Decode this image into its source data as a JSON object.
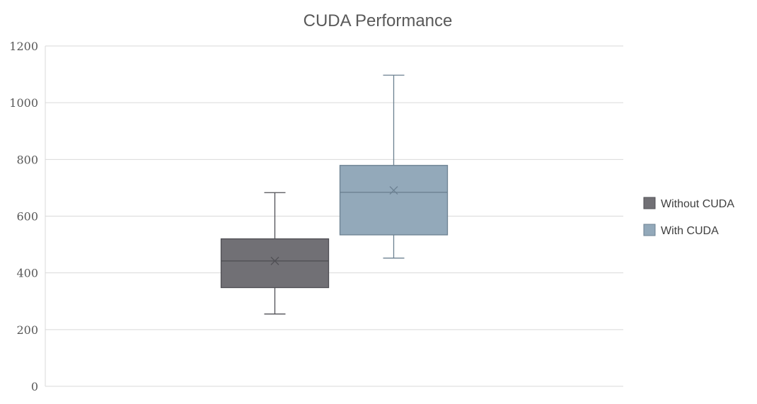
{
  "chart_data": {
    "type": "box",
    "title": "CUDA Performance",
    "xlabel": "",
    "ylabel": "",
    "ylim": [
      0,
      1200
    ],
    "yticks": [
      0,
      200,
      400,
      600,
      800,
      1000,
      1200
    ],
    "grid": true,
    "legend_position": "right",
    "series": [
      {
        "name": "Without CUDA",
        "color": "#717075",
        "line_color": "#4f4f54",
        "min": 255,
        "q1": 348,
        "median": 442,
        "q3": 520,
        "max": 683,
        "mean": 442
      },
      {
        "name": "With CUDA",
        "color": "#93a9ba",
        "line_color": "#6c8191",
        "min": 452,
        "q1": 534,
        "median": 684,
        "q3": 779,
        "max": 1097,
        "mean": 691
      }
    ]
  }
}
